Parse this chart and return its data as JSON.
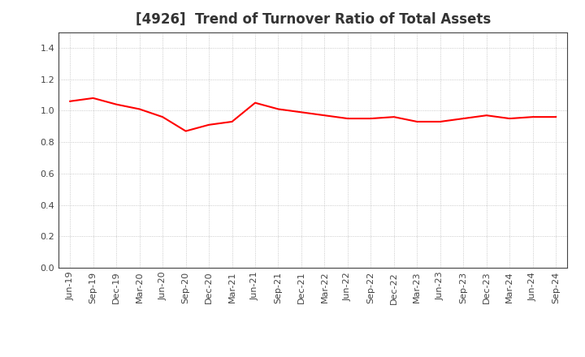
{
  "title": "[4926]  Trend of Turnover Ratio of Total Assets",
  "x_labels": [
    "Jun-19",
    "Sep-19",
    "Dec-19",
    "Mar-20",
    "Jun-20",
    "Sep-20",
    "Dec-20",
    "Mar-21",
    "Jun-21",
    "Sep-21",
    "Dec-21",
    "Mar-22",
    "Jun-22",
    "Sep-22",
    "Dec-22",
    "Mar-23",
    "Jun-23",
    "Sep-23",
    "Dec-23",
    "Mar-24",
    "Jun-24",
    "Sep-24"
  ],
  "values": [
    1.06,
    1.08,
    1.04,
    1.01,
    0.96,
    0.87,
    0.91,
    0.93,
    1.05,
    1.01,
    0.99,
    0.97,
    0.95,
    0.95,
    0.96,
    0.93,
    0.93,
    0.95,
    0.97,
    0.95,
    0.96,
    0.96
  ],
  "line_color": "#ff0000",
  "line_width": 1.5,
  "ylim": [
    0.0,
    1.5
  ],
  "yticks": [
    0.0,
    0.2,
    0.4,
    0.6,
    0.8,
    1.0,
    1.2,
    1.4
  ],
  "grid_color": "#bbbbbb",
  "background_color": "#ffffff",
  "title_fontsize": 12,
  "tick_fontsize": 8,
  "title_color": "#333333",
  "spine_color": "#444444"
}
